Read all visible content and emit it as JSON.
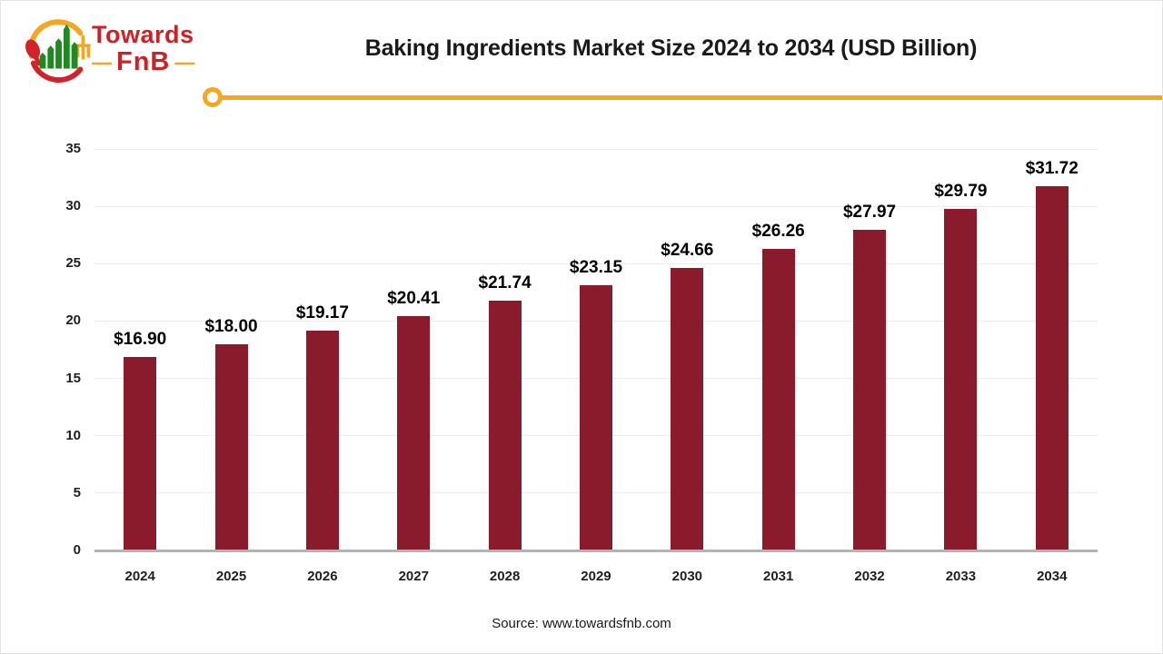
{
  "logo": {
    "line1": "Towards",
    "line2": "FnB",
    "dash": "—",
    "colors": {
      "red": "#ce2127",
      "yellow": "#f5a623",
      "green": "#1f8a1f"
    }
  },
  "title": "Baking Ingredients Market Size 2024 to 2034 (USD Billion)",
  "source": "Source: www.towardsfnb.com",
  "chart_data": {
    "type": "bar",
    "categories": [
      "2024",
      "2025",
      "2026",
      "2027",
      "2028",
      "2029",
      "2030",
      "2031",
      "2032",
      "2033",
      "2034"
    ],
    "values": [
      16.9,
      18.0,
      19.17,
      20.41,
      21.74,
      23.15,
      24.66,
      26.26,
      27.97,
      29.79,
      31.72
    ],
    "labels": [
      "$16.90",
      "$18.00",
      "$19.17",
      "$20.41",
      "$21.74",
      "$23.15",
      "$24.66",
      "$26.26",
      "$27.97",
      "$29.79",
      "$31.72"
    ],
    "title": "Baking Ingredients Market Size 2024 to 2034 (USD Billion)",
    "xlabel": "",
    "ylabel": "",
    "ylim": [
      0,
      35
    ],
    "yticks": [
      0,
      5,
      10,
      15,
      20,
      25,
      30,
      35
    ],
    "grid": true,
    "legend": false,
    "bar_color": "#8a1b2d",
    "gridline_color": "#ececec",
    "baseline_color": "#b3b3b3",
    "accent_color": "#f5a623"
  }
}
